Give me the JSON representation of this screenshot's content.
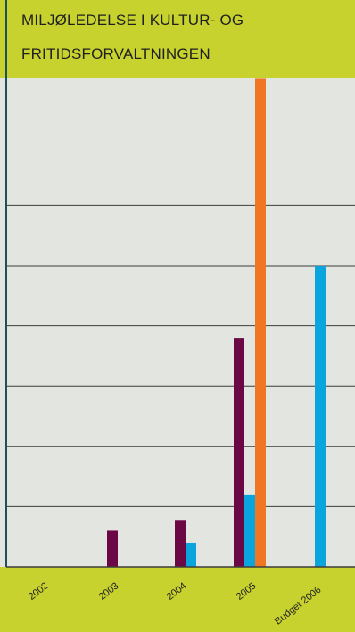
{
  "title_lines": [
    "MILJØLEDELSE I KULTUR- OG",
    "FRITIDSFORVALTNINGEN"
  ],
  "colors": {
    "background": "#c8d22e",
    "plot_background": "#e3e5e1",
    "axis": "#1d4f5c",
    "grid": "#3c3c3c"
  },
  "chart_data": {
    "type": "bar",
    "title": "MILJØLEDELSE I KULTUR- OG FRITIDSFORVALTNINGEN",
    "categories": [
      "2002",
      "2003",
      "2004",
      "2005",
      "Budget 2006"
    ],
    "ylim": [
      0,
      8
    ],
    "grid": true,
    "series": [
      {
        "color": "#6b0745",
        "values": [
          0,
          0.6,
          0.78,
          3.8,
          0
        ]
      },
      {
        "color": "#0aa5dc",
        "values": [
          0,
          0,
          0.4,
          1.2,
          5
        ]
      },
      {
        "color": "#f07623",
        "values": [
          0,
          0,
          0,
          8.1,
          0
        ]
      }
    ]
  }
}
